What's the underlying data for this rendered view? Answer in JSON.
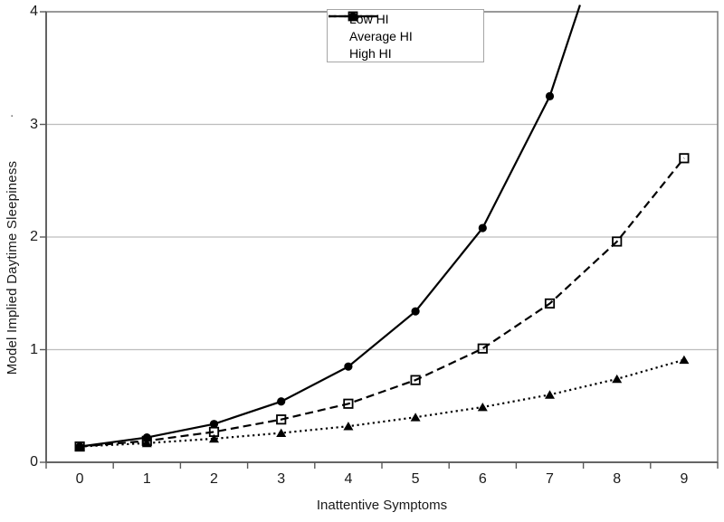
{
  "figure": {
    "background": "#ffffff",
    "series_color": "#000000",
    "frame_color": "#808080",
    "grid_color": "#bdbdbd",
    "tick_color": "#5a5a5a"
  },
  "decorations": {
    "stray_mark": "."
  },
  "chart_data": {
    "type": "line",
    "title": "",
    "xlabel": "Inattentive Symptoms",
    "ylabel": "Model Implied Daytime Sleepiness",
    "x_tick_labels": [
      "0",
      "1",
      "2",
      "3",
      "4",
      "5",
      "6",
      "7",
      "8",
      "9"
    ],
    "y_tick_labels": [
      "0",
      "1",
      "2",
      "3",
      "4"
    ],
    "ylim": [
      0,
      4
    ],
    "num_categories": 10,
    "grid": "horizontal gridlines at y=1,2,3",
    "legend": {
      "position": "top-center-inside",
      "entries": [
        "Low HI",
        "Average HI",
        "High HI"
      ]
    },
    "series": [
      {
        "name": "Low HI",
        "line_style": "solid",
        "marker": "filled-circle",
        "color": "#000000",
        "x": [
          0,
          1,
          2,
          3,
          4,
          5,
          6,
          7
        ],
        "values": [
          0.14,
          0.22,
          0.34,
          0.54,
          0.85,
          1.34,
          2.08,
          3.25
        ],
        "line_exits_top_at": {
          "x": 7.45,
          "y": 4.06
        }
      },
      {
        "name": "Average HI",
        "line_style": "dashed",
        "marker": "open-square",
        "color": "#000000",
        "x": [
          0,
          1,
          2,
          3,
          4,
          5,
          6,
          7,
          8,
          9
        ],
        "values": [
          0.14,
          0.19,
          0.27,
          0.38,
          0.52,
          0.73,
          1.01,
          1.41,
          1.96,
          2.7
        ]
      },
      {
        "name": "High HI",
        "line_style": "dotted",
        "marker": "filled-triangle",
        "color": "#000000",
        "x": [
          0,
          1,
          2,
          3,
          4,
          5,
          6,
          7,
          8,
          9
        ],
        "values": [
          0.14,
          0.17,
          0.21,
          0.26,
          0.32,
          0.4,
          0.49,
          0.6,
          0.74,
          0.91
        ]
      }
    ]
  }
}
